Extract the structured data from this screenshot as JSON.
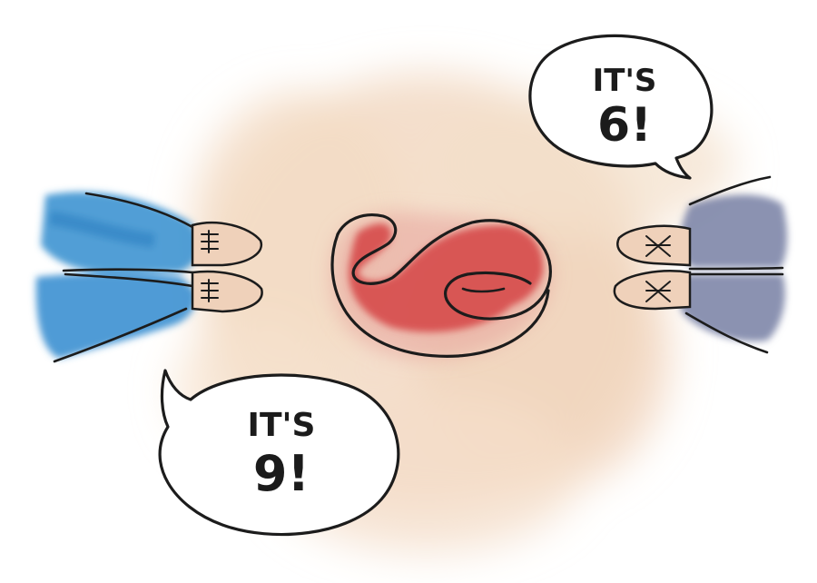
{
  "bubble_left": {
    "line1": "IT'S",
    "line2": "9!"
  },
  "bubble_right": {
    "line1": "IT'S",
    "line2": "6!"
  },
  "colors": {
    "background": "#ffffff",
    "floor_wash": "#f2d9c3",
    "numeral_fill": "#d64a4a",
    "left_pants": "#3f93d2",
    "right_pants": "#7e86a8",
    "shoes": "#efd1ba",
    "ink": "#1c1c1c"
  }
}
